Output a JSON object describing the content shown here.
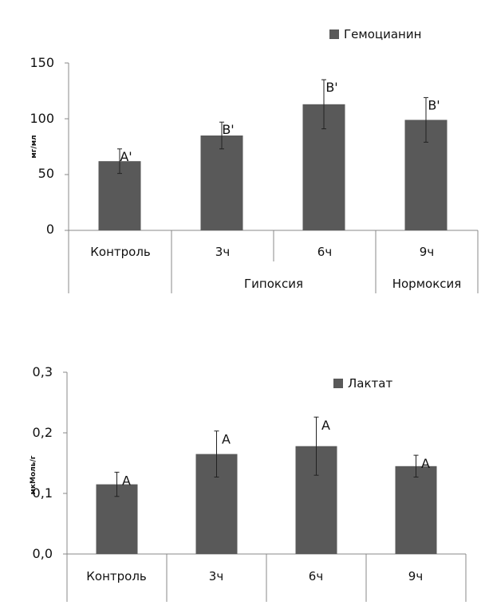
{
  "chart_data": [
    {
      "type": "bar",
      "ylabel": "мг/мл",
      "ylim": [
        0,
        150
      ],
      "yticks": [
        "0",
        "50",
        "100",
        "150"
      ],
      "ytick_values": [
        0,
        50,
        100,
        150
      ],
      "categories": [
        "Контроль",
        "3ч",
        "6ч",
        "9ч"
      ],
      "values": [
        62,
        85,
        113,
        99
      ],
      "errors": [
        11,
        12,
        22,
        20
      ],
      "bar_labels": [
        "A'",
        "B'",
        "B'",
        "B'"
      ],
      "groups": [
        "Гипоксия",
        "Нормоксия"
      ],
      "legend": [
        "Гемоцианин"
      ],
      "legend_position": "top-right",
      "bar_color": "#595959"
    },
    {
      "type": "bar",
      "ylabel": "мкМоль/г",
      "ylim": [
        0,
        0.3
      ],
      "yticks": [
        "0,0",
        "0,1",
        "0,2",
        "0,3"
      ],
      "ytick_values": [
        0,
        0.1,
        0.2,
        0.3
      ],
      "categories": [
        "Контроль",
        "3ч",
        "6ч",
        "9ч"
      ],
      "values": [
        0.115,
        0.165,
        0.178,
        0.145
      ],
      "errors": [
        0.02,
        0.038,
        0.048,
        0.018
      ],
      "bar_labels": [
        "A",
        "A",
        "A",
        "A"
      ],
      "legend": [
        "Лактат"
      ],
      "legend_position": "top-right",
      "bar_color": "#595959"
    }
  ]
}
